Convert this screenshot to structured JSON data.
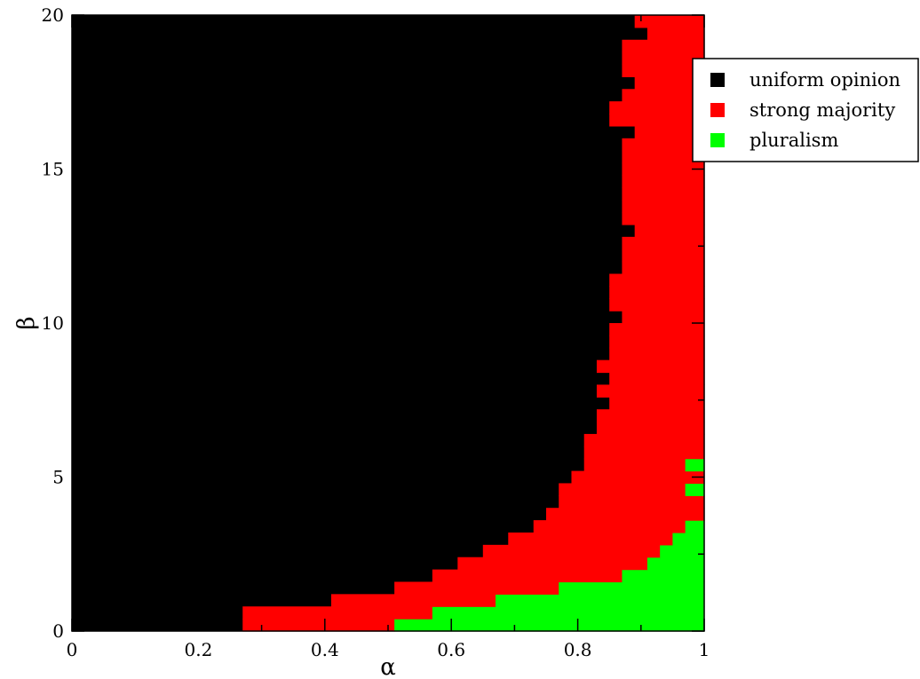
{
  "chart_data": {
    "type": "heatmap",
    "title": "",
    "xlabel": "α",
    "ylabel": "β",
    "xlim": [
      0,
      1
    ],
    "ylim": [
      0,
      20
    ],
    "x_ticks": [
      "0",
      "0.2",
      "0.4",
      "0.6",
      "0.8",
      "1"
    ],
    "y_ticks": [
      "0",
      "5",
      "10",
      "15",
      "20"
    ],
    "legend_position": "top-right-outside",
    "legend": [
      {
        "label": "uniform opinion",
        "color": "#000000"
      },
      {
        "label": "strong majority",
        "color": "#ff0000"
      },
      {
        "label": "pluralism",
        "color": "#00ff00"
      }
    ],
    "cell_size": {
      "alpha": 0.02,
      "beta": 0.4
    },
    "regions": [
      {
        "beta": [
          0.0,
          0.4
        ],
        "uniform_below_alpha": 0.27,
        "pluralism_from_alpha": 0.51
      },
      {
        "beta": [
          0.4,
          0.8
        ],
        "uniform_below_alpha": 0.27,
        "pluralism_from_alpha": 0.57
      },
      {
        "beta": [
          0.8,
          1.2
        ],
        "uniform_below_alpha": 0.41,
        "pluralism_from_alpha": 0.67
      },
      {
        "beta": [
          1.2,
          1.6
        ],
        "uniform_below_alpha": 0.51,
        "pluralism_from_alpha": 0.77
      },
      {
        "beta": [
          1.6,
          2.0
        ],
        "uniform_below_alpha": 0.57,
        "pluralism_from_alpha": 0.87
      },
      {
        "beta": [
          2.0,
          2.4
        ],
        "uniform_below_alpha": 0.61,
        "pluralism_from_alpha": 0.91
      },
      {
        "beta": [
          2.4,
          2.8
        ],
        "uniform_below_alpha": 0.65,
        "pluralism_from_alpha": 0.93
      },
      {
        "beta": [
          2.8,
          3.2
        ],
        "uniform_below_alpha": 0.69,
        "pluralism_from_alpha": 0.95
      },
      {
        "beta": [
          3.2,
          3.6
        ],
        "uniform_below_alpha": 0.73,
        "pluralism_from_alpha": 0.97
      },
      {
        "beta": [
          3.6,
          4.0
        ],
        "uniform_below_alpha": 0.75,
        "pluralism_from_alpha": null
      },
      {
        "beta": [
          4.0,
          4.4
        ],
        "uniform_below_alpha": 0.77,
        "pluralism_from_alpha": null
      },
      {
        "beta": [
          4.4,
          4.8
        ],
        "uniform_below_alpha": 0.77,
        "pluralism_from_alpha": 0.97
      },
      {
        "beta": [
          4.8,
          5.2
        ],
        "uniform_below_alpha": 0.79,
        "pluralism_from_alpha": null
      },
      {
        "beta": [
          5.2,
          5.6
        ],
        "uniform_below_alpha": 0.81,
        "pluralism_from_alpha": 0.97
      },
      {
        "beta": [
          5.6,
          6.0
        ],
        "uniform_below_alpha": 0.81,
        "pluralism_from_alpha": null
      },
      {
        "beta": [
          6.0,
          6.4
        ],
        "uniform_below_alpha": 0.81,
        "pluralism_from_alpha": null
      },
      {
        "beta": [
          6.4,
          6.8
        ],
        "uniform_below_alpha": 0.83,
        "pluralism_from_alpha": null
      },
      {
        "beta": [
          6.8,
          7.2
        ],
        "uniform_below_alpha": 0.83,
        "pluralism_from_alpha": null
      },
      {
        "beta": [
          7.2,
          7.6
        ],
        "uniform_below_alpha": 0.85,
        "pluralism_from_alpha": null
      },
      {
        "beta": [
          7.6,
          8.0
        ],
        "uniform_below_alpha": 0.83,
        "pluralism_from_alpha": null
      },
      {
        "beta": [
          8.0,
          8.4
        ],
        "uniform_below_alpha": 0.85,
        "pluralism_from_alpha": null
      },
      {
        "beta": [
          8.4,
          8.8
        ],
        "uniform_below_alpha": 0.83,
        "pluralism_from_alpha": null
      },
      {
        "beta": [
          8.8,
          9.2
        ],
        "uniform_below_alpha": 0.85,
        "pluralism_from_alpha": null
      },
      {
        "beta": [
          9.2,
          9.6
        ],
        "uniform_below_alpha": 0.85,
        "pluralism_from_alpha": null
      },
      {
        "beta": [
          9.6,
          10.0
        ],
        "uniform_below_alpha": 0.85,
        "pluralism_from_alpha": null
      },
      {
        "beta": [
          10.0,
          10.4
        ],
        "uniform_below_alpha": 0.87,
        "pluralism_from_alpha": null
      },
      {
        "beta": [
          10.4,
          10.8
        ],
        "uniform_below_alpha": 0.85,
        "pluralism_from_alpha": null
      },
      {
        "beta": [
          10.8,
          11.2
        ],
        "uniform_below_alpha": 0.85,
        "pluralism_from_alpha": null
      },
      {
        "beta": [
          11.2,
          11.6
        ],
        "uniform_below_alpha": 0.85,
        "pluralism_from_alpha": null
      },
      {
        "beta": [
          11.6,
          12.0
        ],
        "uniform_below_alpha": 0.87,
        "pluralism_from_alpha": null
      },
      {
        "beta": [
          12.0,
          12.4
        ],
        "uniform_below_alpha": 0.87,
        "pluralism_from_alpha": null
      },
      {
        "beta": [
          12.4,
          12.8
        ],
        "uniform_below_alpha": 0.87,
        "pluralism_from_alpha": null
      },
      {
        "beta": [
          12.8,
          13.2
        ],
        "uniform_below_alpha": 0.89,
        "pluralism_from_alpha": null
      },
      {
        "beta": [
          13.2,
          13.6
        ],
        "uniform_below_alpha": 0.87,
        "pluralism_from_alpha": null
      },
      {
        "beta": [
          13.6,
          14.0
        ],
        "uniform_below_alpha": 0.87,
        "pluralism_from_alpha": null
      },
      {
        "beta": [
          14.0,
          14.4
        ],
        "uniform_below_alpha": 0.87,
        "pluralism_from_alpha": null
      },
      {
        "beta": [
          14.4,
          14.8
        ],
        "uniform_below_alpha": 0.87,
        "pluralism_from_alpha": null
      },
      {
        "beta": [
          14.8,
          15.2
        ],
        "uniform_below_alpha": 0.87,
        "pluralism_from_alpha": null
      },
      {
        "beta": [
          15.2,
          15.6
        ],
        "uniform_below_alpha": 0.87,
        "pluralism_from_alpha": null
      },
      {
        "beta": [
          15.6,
          16.0
        ],
        "uniform_below_alpha": 0.87,
        "pluralism_from_alpha": null
      },
      {
        "beta": [
          16.0,
          16.4
        ],
        "uniform_below_alpha": 0.89,
        "pluralism_from_alpha": null
      },
      {
        "beta": [
          16.4,
          16.8
        ],
        "uniform_below_alpha": 0.85,
        "pluralism_from_alpha": null
      },
      {
        "beta": [
          16.8,
          17.2
        ],
        "uniform_below_alpha": 0.85,
        "pluralism_from_alpha": null
      },
      {
        "beta": [
          17.2,
          17.6
        ],
        "uniform_below_alpha": 0.87,
        "pluralism_from_alpha": null
      },
      {
        "beta": [
          17.6,
          18.0
        ],
        "uniform_below_alpha": 0.89,
        "pluralism_from_alpha": null
      },
      {
        "beta": [
          18.0,
          18.4
        ],
        "uniform_below_alpha": 0.87,
        "pluralism_from_alpha": null
      },
      {
        "beta": [
          18.4,
          18.8
        ],
        "uniform_below_alpha": 0.87,
        "pluralism_from_alpha": null
      },
      {
        "beta": [
          18.8,
          19.2
        ],
        "uniform_below_alpha": 0.87,
        "pluralism_from_alpha": null
      },
      {
        "beta": [
          19.2,
          19.6
        ],
        "uniform_below_alpha": 0.91,
        "pluralism_from_alpha": null
      },
      {
        "beta": [
          19.6,
          20.0
        ],
        "uniform_below_alpha": 0.89,
        "pluralism_from_alpha": null
      }
    ]
  }
}
